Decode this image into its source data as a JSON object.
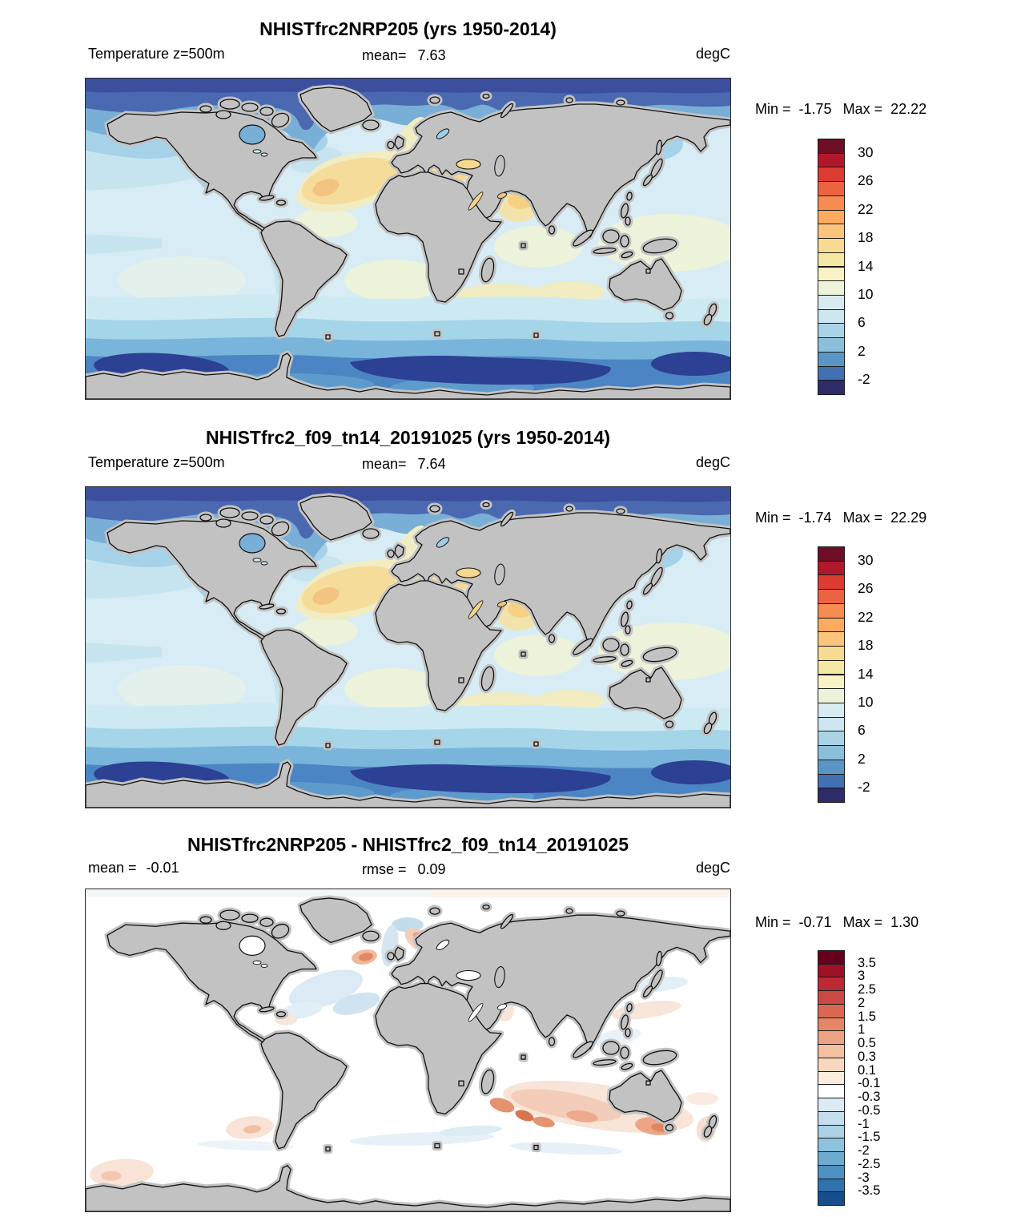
{
  "figure": {
    "panels": [
      {
        "title": "NHISTfrc2NRP205 (yrs 1950-2014)",
        "left_label": "Temperature z=500m",
        "left_value": "",
        "center_label": "mean=",
        "center_value": "7.63",
        "units": "degC",
        "min_label": "Min =",
        "min_value": "-1.75",
        "max_label": "Max =",
        "max_value": "22.22"
      },
      {
        "title": "NHISTfrc2_f09_tn14_20191025 (yrs 1950-2014)",
        "left_label": "Temperature z=500m",
        "left_value": "",
        "center_label": "mean=",
        "center_value": "7.64",
        "units": "degC",
        "min_label": "Min =",
        "min_value": "-1.74",
        "max_label": "Max =",
        "max_value": "22.29"
      },
      {
        "title": "NHISTfrc2NRP205 - NHISTfrc2_f09_tn14_20191025",
        "left_label": "mean =",
        "left_value": "-0.01",
        "center_label": "rmse =",
        "center_value": "0.09",
        "units": "degC",
        "min_label": "Min =",
        "min_value": "-0.71",
        "max_label": "Max =",
        "max_value": "1.30"
      }
    ],
    "colorbars": [
      {
        "label_every": 2,
        "colors": [
          "#6d0d26",
          "#b2182b",
          "#dc3c30",
          "#eb6441",
          "#f68c51",
          "#fbaa60",
          "#fcc47d",
          "#f8da92",
          "#f5e8a3",
          "#f8f2c4",
          "#ecf3da",
          "#d8ebf1",
          "#cde6f0",
          "#abd3e6",
          "#8cc0da",
          "#5a96c5",
          "#4270b2",
          "#2e2c68"
        ],
        "labels": [
          "30",
          "26",
          "22",
          "18",
          "14",
          "10",
          "6",
          "2",
          "-2"
        ]
      },
      {
        "label_every": 2,
        "colors": [
          "#6d0d26",
          "#b2182b",
          "#dc3c30",
          "#eb6441",
          "#f68c51",
          "#fbaa60",
          "#fcc47d",
          "#f8da92",
          "#f5e8a3",
          "#f8f2c4",
          "#ecf3da",
          "#d8ebf1",
          "#cde6f0",
          "#abd3e6",
          "#8cc0da",
          "#5a96c5",
          "#4270b2",
          "#2e2c68"
        ],
        "labels": [
          "30",
          "26",
          "22",
          "18",
          "14",
          "10",
          "6",
          "2",
          "-2"
        ]
      },
      {
        "label_every": 1,
        "colors": [
          "#67001f",
          "#9e1126",
          "#bb2a33",
          "#cb4942",
          "#d96752",
          "#e58667",
          "#eda383",
          "#f4c0a2",
          "#f9d8c1",
          "#fcecdd",
          "#ffffff",
          "#dcebf3",
          "#c5deee",
          "#add1e6",
          "#8fc2dc",
          "#6caccf",
          "#4d92c2",
          "#2f72ae",
          "#174e8c"
        ],
        "labels": [
          "3.5",
          "3",
          "2.5",
          "2",
          "1.5",
          "1",
          "0.5",
          "0.3",
          "0.1",
          "-0.1",
          "-0.3",
          "-0.5",
          "-1",
          "-1.5",
          "-2",
          "-2.5",
          "-3",
          "-3.5"
        ]
      }
    ]
  },
  "chart_data": {
    "type": "heatmap",
    "subtype": "global ocean temperature contour maps, equirectangular world projection",
    "panels": [
      {
        "title": "NHISTfrc2NRP205 (yrs 1950-2014)",
        "variable": "Temperature z=500m",
        "units": "degC",
        "mean": 7.63,
        "min": -1.75,
        "max": 22.22,
        "colorbar_ticks": [
          30,
          26,
          22,
          18,
          14,
          10,
          6,
          2,
          -2
        ],
        "colorbar_step": 2,
        "palette": "red-yellow-blue, warm high / cold low"
      },
      {
        "title": "NHISTfrc2_f09_tn14_20191025 (yrs 1950-2014)",
        "variable": "Temperature z=500m",
        "units": "degC",
        "mean": 7.64,
        "min": -1.74,
        "max": 22.29,
        "colorbar_ticks": [
          30,
          26,
          22,
          18,
          14,
          10,
          6,
          2,
          -2
        ],
        "colorbar_step": 2,
        "palette": "red-yellow-blue, warm high / cold low"
      },
      {
        "title": "NHISTfrc2NRP205 - NHISTfrc2_f09_tn14_20191025",
        "units": "degC",
        "mean": -0.01,
        "rmse": 0.09,
        "min": -0.71,
        "max": 1.3,
        "colorbar_ticks": [
          3.5,
          3,
          2.5,
          2,
          1.5,
          1,
          0.5,
          0.3,
          0.1,
          -0.1,
          -0.3,
          -0.5,
          -1,
          -1.5,
          -2,
          -2.5,
          -3,
          -3.5
        ],
        "palette": "red-white-blue difference scale",
        "notes": "difference map is mostly white (near zero); warm anomalies in southern Indian Ocean and Nordic Seas, cool patches in北 Atlantic"
      }
    ]
  }
}
